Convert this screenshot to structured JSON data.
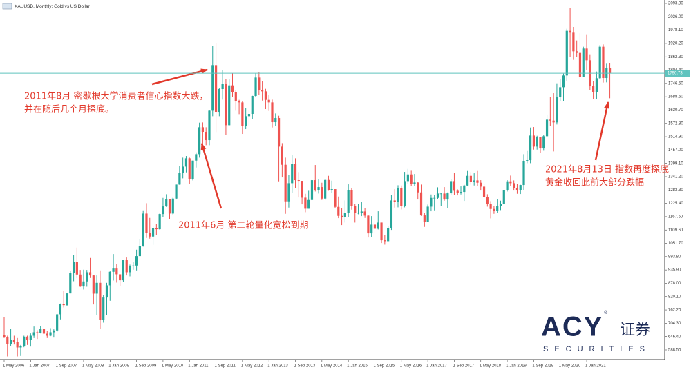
{
  "chart_data": {
    "type": "candlestick",
    "title": "XAUUSD, Monthly: Gold vs US Dollar",
    "up_color": "#26a69a",
    "down_color": "#ef5350",
    "grid": false,
    "last_price": 1790.73,
    "categories": [
      "1 May 2006",
      null,
      null,
      null,
      null,
      null,
      null,
      null,
      "1 Jan 2007",
      null,
      null,
      null,
      null,
      null,
      null,
      null,
      "1 Sep 2007",
      null,
      null,
      null,
      null,
      null,
      null,
      null,
      "1 May 2008",
      null,
      null,
      null,
      null,
      null,
      null,
      null,
      "1 Jan 2009",
      null,
      null,
      null,
      null,
      null,
      null,
      null,
      "1 Sep 2009",
      null,
      null,
      null,
      null,
      null,
      null,
      null,
      "1 May 2010",
      null,
      null,
      null,
      null,
      null,
      null,
      null,
      "1 Jan 2011",
      null,
      null,
      null,
      null,
      null,
      null,
      null,
      "1 Sep 2011",
      null,
      null,
      null,
      null,
      null,
      null,
      null,
      "1 May 2012",
      null,
      null,
      null,
      null,
      null,
      null,
      null,
      "1 Jan 2013",
      null,
      null,
      null,
      null,
      null,
      null,
      null,
      "1 Sep 2013",
      null,
      null,
      null,
      null,
      null,
      null,
      null,
      "1 May 2014",
      null,
      null,
      null,
      null,
      null,
      null,
      null,
      "1 Jan 2015",
      null,
      null,
      null,
      null,
      null,
      null,
      null,
      "1 Sep 2015",
      null,
      null,
      null,
      null,
      null,
      null,
      null,
      "1 May 2016",
      null,
      null,
      null,
      null,
      null,
      null,
      null,
      "1 Jan 2017",
      null,
      null,
      null,
      null,
      null,
      null,
      null,
      "1 Sep 2017",
      null,
      null,
      null,
      null,
      null,
      null,
      null,
      "1 May 2018",
      null,
      null,
      null,
      null,
      null,
      null,
      null,
      "1 Jan 2019",
      null,
      null,
      null,
      null,
      null,
      null,
      null,
      "1 Sep 2019",
      null,
      null,
      null,
      null,
      null,
      null,
      null,
      "1 May 2020",
      null,
      null,
      null,
      null,
      null,
      null,
      null,
      "1 Jan 2021",
      null,
      null,
      null,
      null,
      null,
      null,
      null
    ],
    "open": [
      654,
      643,
      614,
      632,
      623,
      599,
      604,
      646,
      632,
      650,
      665,
      663,
      680,
      659,
      650,
      665,
      673,
      743,
      789,
      783,
      834,
      923,
      972,
      916,
      864,
      886,
      926,
      912,
      833,
      880,
      718,
      816,
      869,
      928,
      942,
      917,
      891,
      979,
      926,
      954,
      955,
      996,
      1040,
      1181,
      1096,
      1081,
      1118,
      1113,
      1179,
      1212,
      1244,
      1181,
      1246,
      1307,
      1357,
      1385,
      1421,
      1332,
      1411,
      1439,
      1556,
      1536,
      1500,
      1628,
      1826,
      1620,
      1722,
      1746,
      1565,
      1738,
      1710,
      1668,
      1664,
      1561,
      1604,
      1614,
      1692,
      1772,
      1719,
      1712,
      1675,
      1664,
      1578,
      1596,
      1472,
      1393,
      1234,
      1313,
      1396,
      1326,
      1323,
      1250,
      1202,
      1240,
      1326,
      1284,
      1296,
      1246,
      1327,
      1282,
      1287,
      1210,
      1171,
      1167,
      1184,
      1283,
      1213,
      1183,
      1184,
      1190,
      1172,
      1095,
      1133,
      1115,
      1142,
      1065,
      1061,
      1118,
      1238,
      1233,
      1293,
      1215,
      1322,
      1351,
      1309,
      1316,
      1273,
      1173,
      1146,
      1211,
      1249,
      1249,
      1268,
      1268,
      1242,
      1269,
      1322,
      1280,
      1271,
      1275,
      1303,
      1345,
      1318,
      1325,
      1315,
      1298,
      1253,
      1224,
      1201,
      1192,
      1215,
      1222,
      1282,
      1321,
      1313,
      1292,
      1284,
      1305,
      1409,
      1413,
      1520,
      1472,
      1513,
      1464,
      1517,
      1589,
      1585,
      1577,
      1686,
      1730,
      1781,
      1975,
      1967,
      1886,
      1879,
      1776,
      1898,
      1847,
      1734,
      1708,
      1769,
      1906,
      1770,
      1814
    ],
    "high": [
      730,
      650,
      680,
      650,
      640,
      610,
      650,
      650,
      660,
      690,
      674,
      693,
      690,
      670,
      683,
      678,
      745,
      790,
      845,
      835,
      932,
      1002,
      1033,
      936,
      937,
      936,
      988,
      915,
      912,
      934,
      826,
      880,
      930,
      1005,
      963,
      915,
      981,
      990,
      959,
      970,
      1024,
      1070,
      1195,
      1226,
      1162,
      1127,
      1135,
      1181,
      1249,
      1265,
      1245,
      1250,
      1307,
      1388,
      1424,
      1431,
      1424,
      1411,
      1447,
      1576,
      1577,
      1556,
      1632,
      1911,
      1920,
      1725,
      1804,
      1764,
      1764,
      1791,
      1718,
      1675,
      1669,
      1640,
      1631,
      1693,
      1790,
      1796,
      1755,
      1723,
      1695,
      1676,
      1616,
      1606,
      1487,
      1424,
      1348,
      1434,
      1421,
      1361,
      1323,
      1267,
      1280,
      1332,
      1392,
      1331,
      1315,
      1332,
      1345,
      1324,
      1287,
      1255,
      1204,
      1238,
      1308,
      1293,
      1224,
      1224,
      1232,
      1205,
      1174,
      1170,
      1157,
      1191,
      1142,
      1088,
      1128,
      1263,
      1287,
      1304,
      1303,
      1362,
      1375,
      1367,
      1353,
      1317,
      1307,
      1183,
      1220,
      1264,
      1262,
      1295,
      1272,
      1296,
      1273,
      1331,
      1357,
      1286,
      1299,
      1306,
      1366,
      1361,
      1356,
      1366,
      1326,
      1309,
      1265,
      1235,
      1214,
      1243,
      1237,
      1284,
      1326,
      1346,
      1325,
      1310,
      1306,
      1439,
      1453,
      1555,
      1557,
      1519,
      1515,
      1523,
      1611,
      1689,
      1704,
      1747,
      1765,
      1789,
      1984,
      2075,
      1992,
      1933,
      1965,
      1906,
      1960,
      1873,
      1755,
      1798,
      1913,
      1916,
      1832,
      1834
    ],
    "low": [
      640,
      560,
      605,
      612,
      560,
      562,
      600,
      610,
      603,
      640,
      636,
      660,
      652,
      640,
      648,
      642,
      667,
      721,
      773,
      780,
      834,
      887,
      900,
      862,
      851,
      863,
      901,
      786,
      740,
      681,
      707,
      740,
      802,
      890,
      881,
      865,
      883,
      912,
      908,
      937,
      934,
      1003,
      1037,
      1075,
      1072,
      1045,
      1088,
      1111,
      1166,
      1210,
      1157,
      1177,
      1242,
      1306,
      1334,
      1360,
      1309,
      1325,
      1381,
      1424,
      1462,
      1478,
      1478,
      1604,
      1535,
      1604,
      1676,
      1523,
      1564,
      1688,
      1628,
      1613,
      1527,
      1548,
      1564,
      1591,
      1689,
      1696,
      1672,
      1635,
      1627,
      1555,
      1562,
      1321,
      1338,
      1180,
      1207,
      1272,
      1291,
      1251,
      1221,
      1187,
      1202,
      1238,
      1277,
      1268,
      1240,
      1240,
      1280,
      1272,
      1205,
      1161,
      1131,
      1142,
      1167,
      1198,
      1142,
      1178,
      1170,
      1162,
      1077,
      1080,
      1097,
      1112,
      1053,
      1046,
      1061,
      1110,
      1207,
      1208,
      1199,
      1208,
      1310,
      1301,
      1302,
      1242,
      1171,
      1123,
      1146,
      1191,
      1195,
      1244,
      1215,
      1237,
      1204,
      1262,
      1263,
      1260,
      1264,
      1236,
      1302,
      1307,
      1303,
      1301,
      1281,
      1247,
      1211,
      1160,
      1180,
      1183,
      1196,
      1221,
      1277,
      1302,
      1281,
      1267,
      1266,
      1282,
      1400,
      1400,
      1459,
      1459,
      1445,
      1454,
      1516,
      1562,
      1451,
      1568,
      1670,
      1671,
      1757,
      1863,
      1849,
      1860,
      1765,
      1775,
      1803,
      1718,
      1677,
      1677,
      1766,
      1750,
      1751,
      1682
    ],
    "close": [
      643,
      614,
      632,
      623,
      599,
      604,
      646,
      632,
      650,
      665,
      663,
      680,
      659,
      650,
      665,
      673,
      743,
      789,
      783,
      834,
      923,
      972,
      916,
      864,
      886,
      926,
      912,
      833,
      880,
      718,
      816,
      869,
      928,
      942,
      917,
      891,
      979,
      926,
      954,
      955,
      996,
      1040,
      1181,
      1096,
      1081,
      1118,
      1113,
      1179,
      1212,
      1244,
      1181,
      1246,
      1307,
      1357,
      1385,
      1421,
      1332,
      1411,
      1439,
      1556,
      1536,
      1500,
      1628,
      1826,
      1620,
      1722,
      1746,
      1565,
      1738,
      1710,
      1668,
      1664,
      1561,
      1604,
      1614,
      1692,
      1772,
      1719,
      1712,
      1675,
      1664,
      1578,
      1596,
      1472,
      1393,
      1234,
      1313,
      1396,
      1326,
      1323,
      1250,
      1202,
      1240,
      1326,
      1284,
      1296,
      1246,
      1327,
      1282,
      1287,
      1210,
      1171,
      1167,
      1184,
      1283,
      1213,
      1183,
      1184,
      1190,
      1172,
      1095,
      1133,
      1115,
      1142,
      1065,
      1061,
      1118,
      1238,
      1233,
      1293,
      1215,
      1322,
      1351,
      1309,
      1316,
      1273,
      1173,
      1146,
      1211,
      1249,
      1249,
      1268,
      1268,
      1242,
      1269,
      1322,
      1280,
      1271,
      1275,
      1303,
      1345,
      1318,
      1325,
      1315,
      1298,
      1253,
      1224,
      1201,
      1192,
      1215,
      1222,
      1282,
      1321,
      1313,
      1292,
      1284,
      1305,
      1409,
      1413,
      1520,
      1472,
      1513,
      1464,
      1517,
      1589,
      1585,
      1577,
      1686,
      1730,
      1781,
      1975,
      1967,
      1886,
      1879,
      1776,
      1898,
      1847,
      1734,
      1708,
      1769,
      1906,
      1770,
      1814,
      1791
    ],
    "ylim": [
      546.5,
      2108.9
    ],
    "yticks": [
      {
        "value": 2093.9,
        "label": "2093.90"
      },
      {
        "value": 2036,
        "label": "2036.00"
      },
      {
        "value": 1978.1,
        "label": "1978.10"
      },
      {
        "value": 1920.2,
        "label": "1920.20"
      },
      {
        "value": 1862.3,
        "label": "1862.30"
      },
      {
        "value": 1804.4,
        "label": "1804.40"
      },
      {
        "value": 1746.5,
        "label": "1746.50"
      },
      {
        "value": 1688.6,
        "label": "1688.60"
      },
      {
        "value": 1630.7,
        "label": "1630.70"
      },
      {
        "value": 1572.8,
        "label": "1572.80"
      },
      {
        "value": 1514.9,
        "label": "1514.90"
      },
      {
        "value": 1457,
        "label": "1457.00"
      },
      {
        "value": 1399.1,
        "label": "1399.10"
      },
      {
        "value": 1341.2,
        "label": "1341.20"
      },
      {
        "value": 1283.3,
        "label": "1283.30"
      },
      {
        "value": 1225.4,
        "label": "1225.40"
      },
      {
        "value": 1167.5,
        "label": "1167.50"
      },
      {
        "value": 1109.6,
        "label": "1109.60"
      },
      {
        "value": 1051.7,
        "label": "1051.70"
      },
      {
        "value": 993.8,
        "label": "993.80"
      },
      {
        "value": 935.9,
        "label": "935.90"
      },
      {
        "value": 878,
        "label": "878.00"
      },
      {
        "value": 820.1,
        "label": "820.10"
      },
      {
        "value": 762.2,
        "label": "762.20"
      },
      {
        "value": 704.3,
        "label": "704.30"
      },
      {
        "value": 646.4,
        "label": "646.40"
      },
      {
        "value": 588.5,
        "label": "588.50"
      }
    ],
    "annotations": [
      [
        "2011年8月 密歇根大学消费者信心指数大跌，",
        "并在随后几个月探底。"
      ],
      [
        "2011年6月 第二轮量化宽松到期"
      ],
      [
        "2021年8月13日 指数再度探底",
        "黄金收回此前大部分跌幅"
      ]
    ]
  },
  "logo": {
    "brand": "ACY",
    "mark": "®",
    "name": "证券",
    "tagline": "SECURITIES"
  }
}
